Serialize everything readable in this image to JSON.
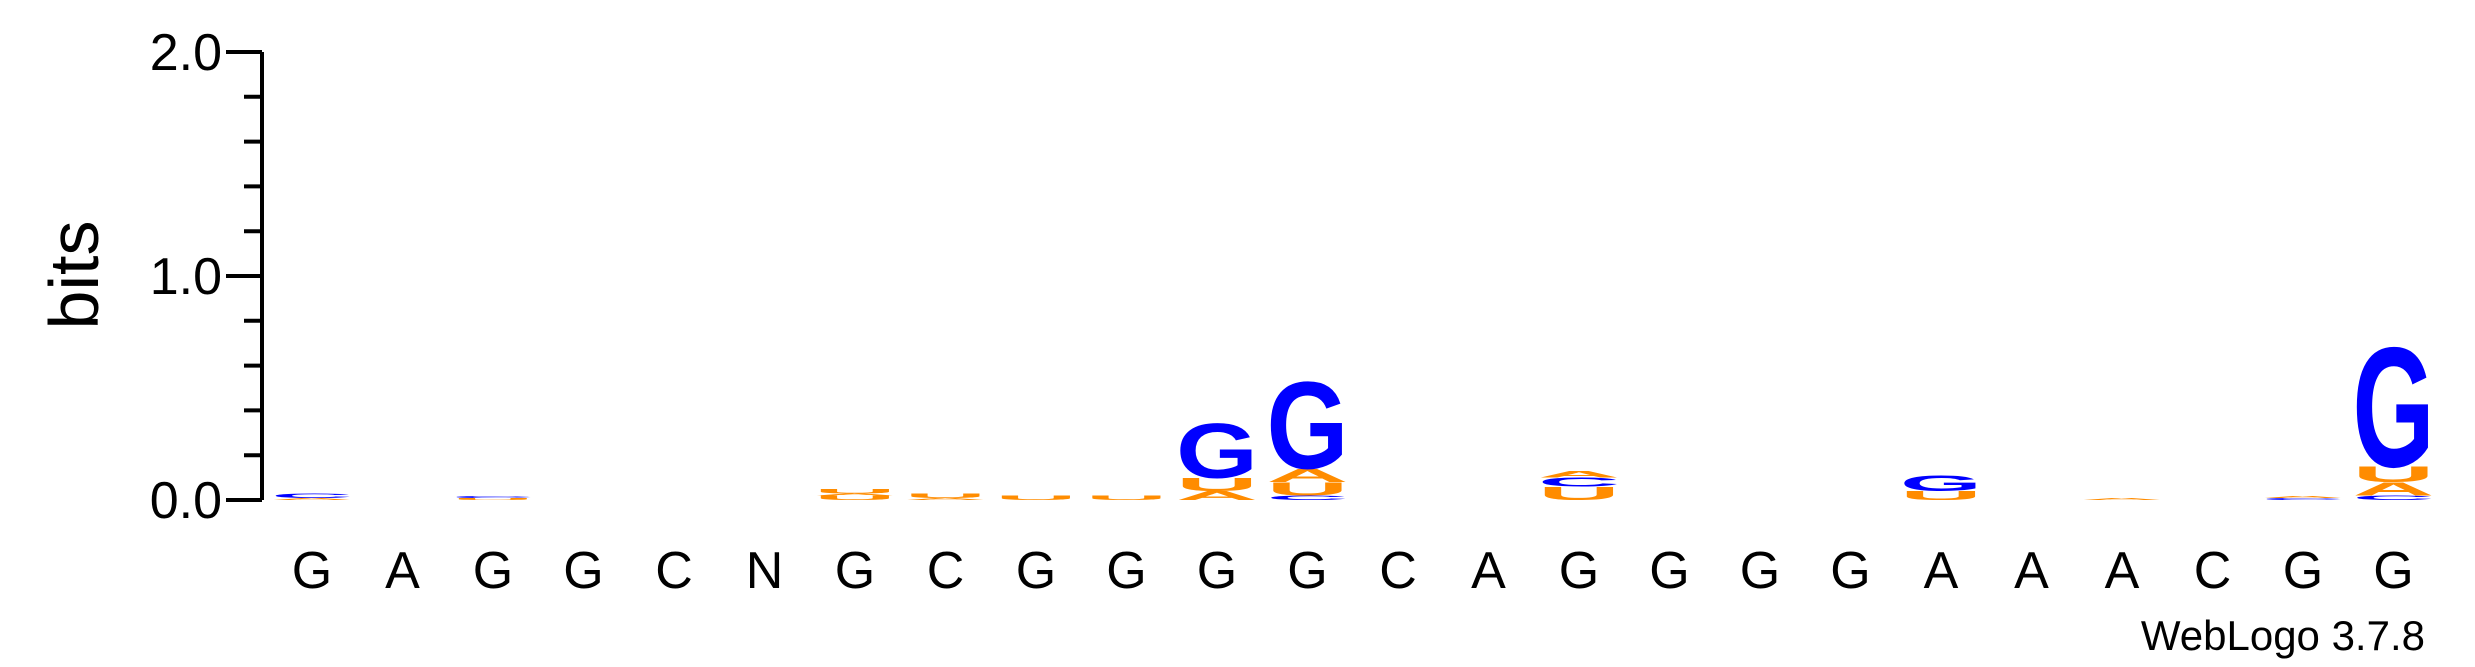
{
  "chart_data": {
    "type": "sequence-logo",
    "ylabel": "bits",
    "ylim": [
      0,
      2.0
    ],
    "yticks": [
      {
        "value": 0.0,
        "label": "0.0"
      },
      {
        "value": 1.0,
        "label": "1.0"
      },
      {
        "value": 2.0,
        "label": "2.0"
      }
    ],
    "positions": [
      "G",
      "A",
      "G",
      "G",
      "C",
      "N",
      "G",
      "C",
      "G",
      "G",
      "G",
      "G",
      "C",
      "A",
      "G",
      "G",
      "G",
      "G",
      "A",
      "A",
      "A",
      "C",
      "G",
      "G"
    ],
    "letter_colors": {
      "G": "#0000ff",
      "U": "#ff8c00",
      "A": "#ff8c00",
      "C": "#0000ff"
    },
    "stacks": [
      [
        {
          "letter": "A",
          "bits": 0.01
        },
        {
          "letter": "C",
          "bits": 0.02
        }
      ],
      [],
      [
        {
          "letter": "U",
          "bits": 0.01
        },
        {
          "letter": "C",
          "bits": 0.01
        }
      ],
      [],
      [],
      [],
      [
        {
          "letter": "U",
          "bits": 0.02
        },
        {
          "letter": "A",
          "bits": 0.01
        },
        {
          "letter": "U",
          "bits": 0.02
        }
      ],
      [
        {
          "letter": "A",
          "bits": 0.01
        },
        {
          "letter": "U",
          "bits": 0.02
        }
      ],
      [
        {
          "letter": "U",
          "bits": 0.02
        }
      ],
      [
        {
          "letter": "U",
          "bits": 0.02
        }
      ],
      [
        {
          "letter": "A",
          "bits": 0.04
        },
        {
          "letter": "U",
          "bits": 0.06
        },
        {
          "letter": "G",
          "bits": 0.25
        }
      ],
      [
        {
          "letter": "C",
          "bits": 0.02
        },
        {
          "letter": "U",
          "bits": 0.06
        },
        {
          "letter": "A",
          "bits": 0.06
        },
        {
          "letter": "G",
          "bits": 0.4
        }
      ],
      [],
      [],
      [
        {
          "letter": "U",
          "bits": 0.06
        },
        {
          "letter": "C",
          "bits": 0.04
        },
        {
          "letter": "A",
          "bits": 0.03
        }
      ],
      [],
      [],
      [],
      [
        {
          "letter": "U",
          "bits": 0.04
        },
        {
          "letter": "G",
          "bits": 0.07
        }
      ],
      [],
      [
        {
          "letter": "A",
          "bits": 0.01
        }
      ],
      [],
      [
        {
          "letter": "C",
          "bits": 0.01
        },
        {
          "letter": "A",
          "bits": 0.01
        }
      ],
      [
        {
          "letter": "C",
          "bits": 0.02
        },
        {
          "letter": "A",
          "bits": 0.06
        },
        {
          "letter": "U",
          "bits": 0.07
        },
        {
          "letter": "G",
          "bits": 0.55
        }
      ]
    ],
    "footer": "WebLogo 3.7.8"
  }
}
